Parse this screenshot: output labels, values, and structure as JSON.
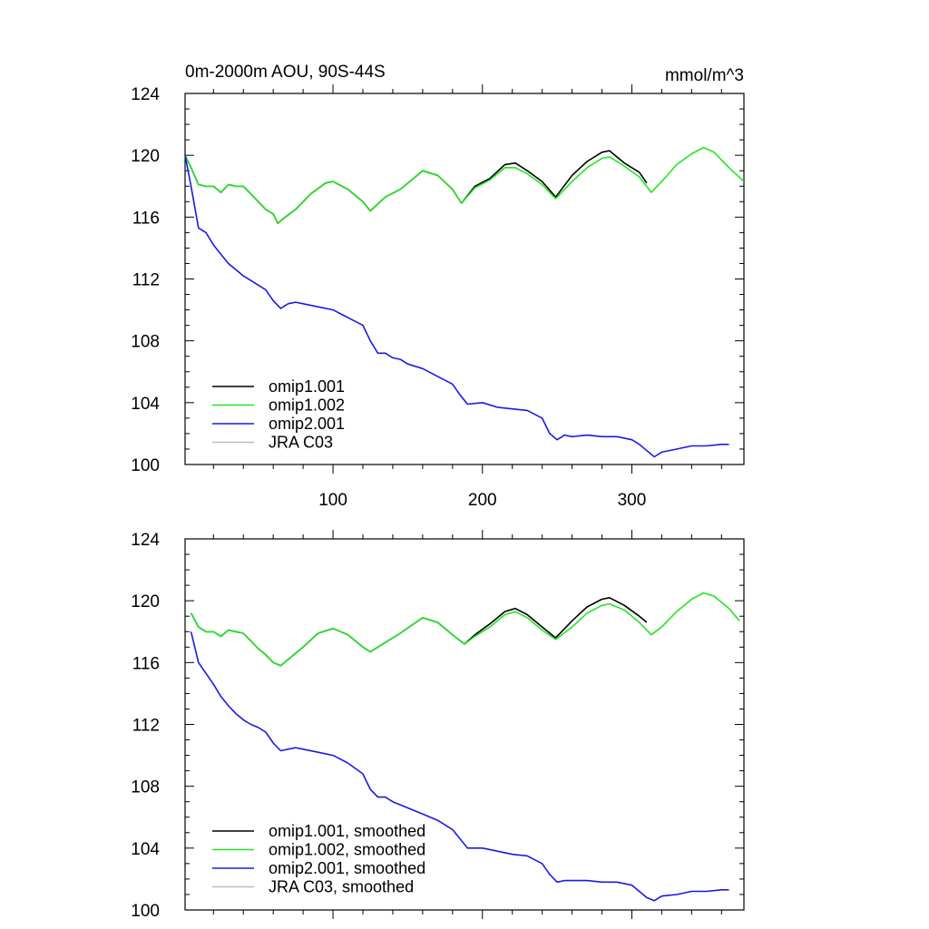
{
  "chart_data": [
    {
      "type": "line",
      "title": "0m-2000m AOU, 90S-44S",
      "units": "mmol/m^3",
      "xlim": [
        1,
        375
      ],
      "ylim": [
        100,
        124
      ],
      "yticks": [
        100,
        104,
        108,
        112,
        116,
        120,
        124
      ],
      "xticks": [
        100,
        200,
        300
      ],
      "show_x_tick_labels": true,
      "legend_position": "bottom-left",
      "series": [
        {
          "name": "omip1.001",
          "color": "#000000",
          "x": [
            1,
            5,
            10,
            15,
            20,
            25,
            30,
            35,
            40,
            45,
            50,
            55,
            60,
            63,
            68,
            75,
            85,
            95,
            100,
            110,
            120,
            125,
            135,
            145,
            160,
            170,
            180,
            186,
            195,
            205,
            215,
            222,
            230,
            240,
            249,
            260,
            270,
            280,
            285,
            295,
            305,
            310
          ],
          "y": [
            120.0,
            119.2,
            118.1,
            118.0,
            118.0,
            117.6,
            118.1,
            118.0,
            118.0,
            117.5,
            117.0,
            116.5,
            116.2,
            115.6,
            116.0,
            116.5,
            117.5,
            118.2,
            118.3,
            117.8,
            117.0,
            116.4,
            117.3,
            117.8,
            119.0,
            118.7,
            117.8,
            116.9,
            118.0,
            118.5,
            119.4,
            119.5,
            119.0,
            118.3,
            117.3,
            118.7,
            119.6,
            120.2,
            120.3,
            119.5,
            118.9,
            118.2
          ]
        },
        {
          "name": "omip1.002",
          "color": "#22e622",
          "x": [
            1,
            5,
            10,
            15,
            20,
            25,
            30,
            35,
            40,
            45,
            50,
            55,
            60,
            63,
            68,
            75,
            85,
            95,
            100,
            110,
            120,
            125,
            135,
            145,
            160,
            170,
            180,
            186,
            195,
            205,
            215,
            222,
            230,
            240,
            249,
            260,
            270,
            280,
            285,
            295,
            305,
            313,
            320,
            330,
            340,
            348,
            355,
            365,
            375
          ],
          "y": [
            120.0,
            119.2,
            118.1,
            118.0,
            118.0,
            117.6,
            118.1,
            118.0,
            118.0,
            117.5,
            117.0,
            116.5,
            116.2,
            115.6,
            116.0,
            116.5,
            117.5,
            118.2,
            118.3,
            117.8,
            117.0,
            116.4,
            117.3,
            117.8,
            119.0,
            118.7,
            117.8,
            116.9,
            117.9,
            118.4,
            119.2,
            119.2,
            118.8,
            118.1,
            117.2,
            118.3,
            119.2,
            119.8,
            119.9,
            119.3,
            118.6,
            117.6,
            118.3,
            119.4,
            120.1,
            120.5,
            120.2,
            119.2,
            118.3
          ]
        },
        {
          "name": "omip2.001",
          "color": "#1a1ae6",
          "x": [
            1,
            5,
            10,
            15,
            20,
            25,
            30,
            35,
            40,
            45,
            50,
            55,
            60,
            65,
            70,
            75,
            80,
            90,
            100,
            110,
            120,
            125,
            130,
            135,
            140,
            145,
            150,
            160,
            170,
            180,
            185,
            190,
            200,
            210,
            220,
            230,
            240,
            245,
            250,
            255,
            260,
            270,
            280,
            290,
            300,
            305,
            310,
            315,
            320,
            330,
            340,
            350,
            360,
            365
          ],
          "y": [
            120.0,
            118.0,
            115.3,
            115.0,
            114.2,
            113.6,
            113.0,
            112.6,
            112.2,
            111.9,
            111.6,
            111.3,
            110.6,
            110.1,
            110.4,
            110.5,
            110.4,
            110.2,
            110.0,
            109.5,
            109.0,
            108.0,
            107.2,
            107.2,
            106.9,
            106.8,
            106.5,
            106.2,
            105.7,
            105.2,
            104.5,
            103.9,
            104.0,
            103.7,
            103.6,
            103.5,
            103.0,
            102.0,
            101.6,
            101.9,
            101.8,
            101.9,
            101.8,
            101.8,
            101.6,
            101.3,
            100.9,
            100.5,
            100.8,
            101.0,
            101.2,
            101.2,
            101.3,
            101.3
          ]
        },
        {
          "name": "JRA C03",
          "color": "#bbbbbb",
          "x": [],
          "y": []
        }
      ]
    },
    {
      "type": "line",
      "title": "",
      "units": "",
      "xlim": [
        1,
        375
      ],
      "ylim": [
        100,
        124
      ],
      "yticks": [
        100,
        104,
        108,
        112,
        116,
        120,
        124
      ],
      "xticks": [
        100,
        200,
        300
      ],
      "show_x_tick_labels": false,
      "legend_position": "bottom-left",
      "series": [
        {
          "name": "omip1.001, smoothed",
          "color": "#000000",
          "x": [
            5,
            10,
            15,
            20,
            25,
            30,
            35,
            40,
            45,
            50,
            55,
            60,
            65,
            70,
            80,
            90,
            100,
            110,
            120,
            125,
            135,
            145,
            160,
            170,
            180,
            188,
            195,
            205,
            215,
            222,
            230,
            240,
            249,
            260,
            270,
            280,
            285,
            295,
            305,
            310
          ],
          "y": [
            119.2,
            118.3,
            118.0,
            118.0,
            117.7,
            118.1,
            118.0,
            117.9,
            117.4,
            116.9,
            116.5,
            116.0,
            115.8,
            116.2,
            117.0,
            117.9,
            118.2,
            117.8,
            117.0,
            116.7,
            117.3,
            117.9,
            118.9,
            118.6,
            117.8,
            117.2,
            117.8,
            118.5,
            119.3,
            119.5,
            119.1,
            118.3,
            117.6,
            118.7,
            119.6,
            120.1,
            120.2,
            119.7,
            119.0,
            118.6
          ]
        },
        {
          "name": "omip1.002, smoothed",
          "color": "#22e622",
          "x": [
            5,
            10,
            15,
            20,
            25,
            30,
            35,
            40,
            45,
            50,
            55,
            60,
            65,
            70,
            80,
            90,
            100,
            110,
            120,
            125,
            135,
            145,
            160,
            170,
            180,
            188,
            195,
            205,
            215,
            222,
            230,
            240,
            249,
            260,
            270,
            280,
            285,
            295,
            305,
            313,
            320,
            330,
            340,
            348,
            355,
            365,
            372
          ],
          "y": [
            119.2,
            118.3,
            118.0,
            118.0,
            117.7,
            118.1,
            118.0,
            117.9,
            117.4,
            116.9,
            116.5,
            116.0,
            115.8,
            116.2,
            117.0,
            117.9,
            118.2,
            117.8,
            117.0,
            116.7,
            117.3,
            117.9,
            118.9,
            118.6,
            117.8,
            117.2,
            117.7,
            118.3,
            119.1,
            119.3,
            118.9,
            118.1,
            117.5,
            118.3,
            119.2,
            119.7,
            119.8,
            119.4,
            118.6,
            117.8,
            118.3,
            119.3,
            120.1,
            120.5,
            120.3,
            119.5,
            118.7
          ]
        },
        {
          "name": "omip2.001, smoothed",
          "color": "#1a1ae6",
          "x": [
            5,
            10,
            15,
            20,
            25,
            30,
            35,
            40,
            45,
            50,
            55,
            60,
            65,
            70,
            75,
            80,
            90,
            100,
            110,
            120,
            125,
            130,
            135,
            140,
            145,
            150,
            160,
            170,
            180,
            185,
            190,
            200,
            210,
            220,
            230,
            240,
            245,
            250,
            255,
            260,
            270,
            280,
            290,
            300,
            305,
            310,
            315,
            320,
            330,
            340,
            350,
            360,
            365
          ],
          "y": [
            118.0,
            116.0,
            115.3,
            114.6,
            113.8,
            113.2,
            112.7,
            112.3,
            112.0,
            111.8,
            111.5,
            110.8,
            110.3,
            110.4,
            110.5,
            110.4,
            110.2,
            110.0,
            109.5,
            108.8,
            107.8,
            107.3,
            107.3,
            107.0,
            106.8,
            106.6,
            106.2,
            105.8,
            105.2,
            104.6,
            104.0,
            104.0,
            103.8,
            103.6,
            103.5,
            103.0,
            102.3,
            101.8,
            101.9,
            101.9,
            101.9,
            101.8,
            101.8,
            101.6,
            101.2,
            100.8,
            100.6,
            100.9,
            101.0,
            101.2,
            101.2,
            101.3,
            101.3
          ]
        },
        {
          "name": "JRA C03, smoothed",
          "color": "#bbbbbb",
          "x": [],
          "y": []
        }
      ]
    }
  ]
}
